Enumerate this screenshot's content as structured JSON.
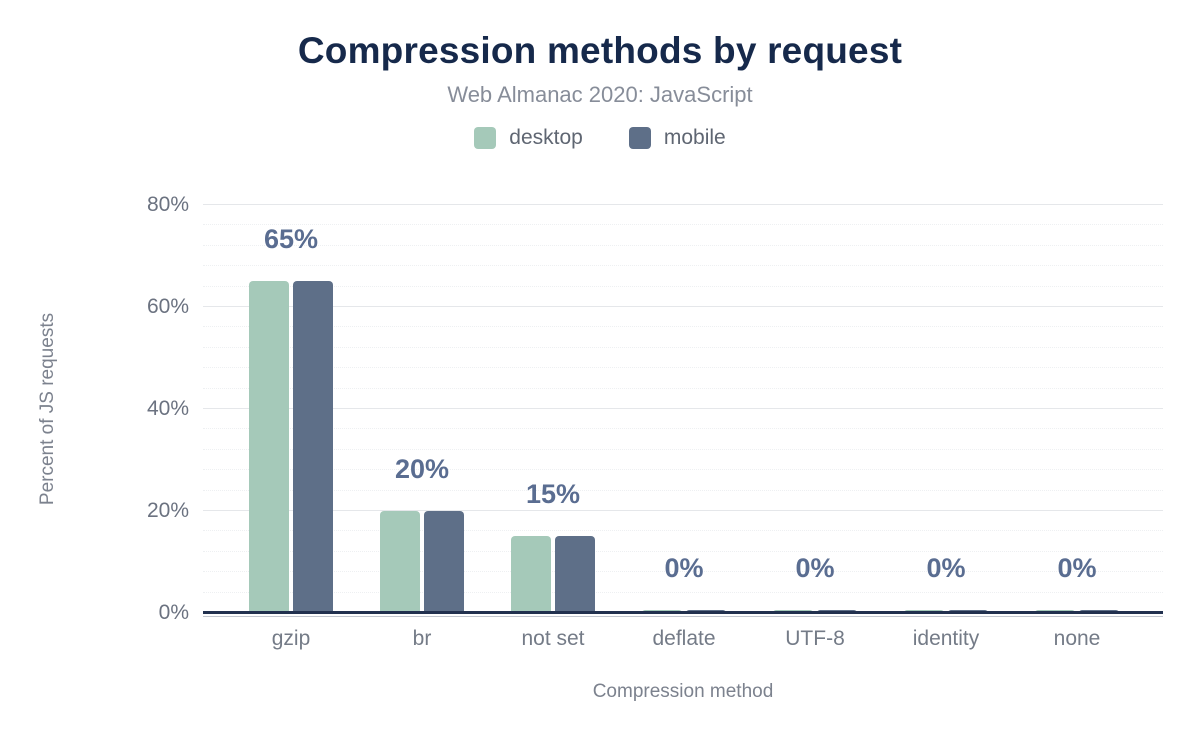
{
  "header": {
    "title": "Compression methods by request",
    "subtitle": "Web Almanac 2020: JavaScript"
  },
  "chart_data": {
    "type": "bar",
    "title": "Compression methods by request",
    "subtitle": "Web Almanac 2020: JavaScript",
    "categories": [
      "gzip",
      "br",
      "not set",
      "deflate",
      "UTF-8",
      "identity",
      "none"
    ],
    "series": [
      {
        "name": "desktop",
        "color": "#a5c9b9",
        "values": [
          65,
          20,
          15,
          0,
          0,
          0,
          0
        ]
      },
      {
        "name": "mobile",
        "color": "#5e6f88",
        "values": [
          65,
          20,
          15,
          0,
          0,
          0,
          0
        ]
      }
    ],
    "data_labels": [
      "65%",
      "20%",
      "15%",
      "0%",
      "0%",
      "0%",
      "0%"
    ],
    "xlabel": "Compression method",
    "ylabel": "Percent of JS requests",
    "ylim": [
      0,
      80
    ],
    "yticks": [
      "0%",
      "20%",
      "40%",
      "60%",
      "80%"
    ],
    "ytick_values": [
      0,
      20,
      40,
      60,
      80
    ],
    "minor_grid_step": 4,
    "grid": true,
    "legend_position": "top"
  },
  "colors": {
    "title": "#16294b",
    "subtitle_text": "#878d99",
    "legend_text": "#5f6672",
    "axis_text": "#6b7280",
    "axis_title_text": "#7c828e",
    "data_label": "#5a6d91",
    "axis_line": "#22314f",
    "major_gridline": "#e5e7ea",
    "minor_gridline": "#eef0f2",
    "desktop_bar": "#a5c9b9",
    "mobile_bar": "#5e6f88",
    "background": "#ffffff"
  }
}
